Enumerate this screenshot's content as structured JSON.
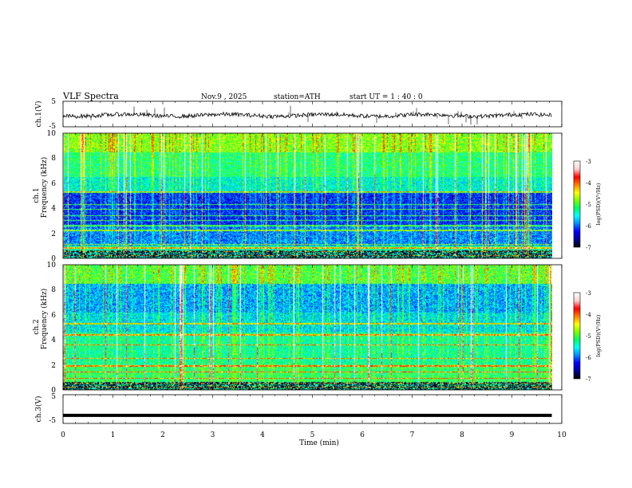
{
  "header": {
    "title": "VLF  Spectra",
    "date": "Nov.9   , 2025",
    "station": "station=ATH",
    "start_ut": "start  UT  =    1  : 40 : 0"
  },
  "chart_data": {
    "type": "heatmap",
    "xlabel": "Time  (min)",
    "xlim": [
      0,
      10
    ],
    "xticks": [
      "0",
      "1",
      "2",
      "3",
      "4",
      "5",
      "6",
      "7",
      "8",
      "9",
      "10"
    ],
    "data_end_min": 9.8,
    "panels": [
      {
        "id": "ch1-waveform",
        "type": "line",
        "ylabel": "ch.1(V)",
        "ylim": [
          -5,
          5
        ],
        "yticks": [
          "5",
          "-5"
        ],
        "baseline": -0.5
      },
      {
        "id": "ch1-spectrogram",
        "type": "heatmap",
        "ylabel_top": "ch.1",
        "ylabel": "Frequency  (kHz)",
        "ylim": [
          0,
          10
        ],
        "yticks": [
          "0",
          "2",
          "4",
          "6",
          "8",
          "10"
        ],
        "lines_khz": [
          0.2,
          0.5,
          0.8,
          1.1,
          2.2,
          2.6,
          3.0,
          3.4,
          3.9,
          4.3,
          5.3
        ]
      },
      {
        "id": "ch2-spectrogram",
        "type": "heatmap",
        "ylabel_top": "ch.2",
        "ylabel": "Frequency  (kHz)",
        "ylim": [
          0,
          10
        ],
        "yticks": [
          "0",
          "2",
          "4",
          "6",
          "8",
          "10"
        ],
        "lines_khz": [
          0.2,
          0.5,
          0.9,
          1.4,
          1.9,
          2.5,
          3.6,
          4.4,
          5.3
        ]
      },
      {
        "id": "ch3-waveform",
        "type": "line",
        "ylabel": "ch.3(V)",
        "ylim": [
          -5,
          5
        ],
        "yticks": [
          "5",
          "-5"
        ],
        "baseline": -2.2
      }
    ],
    "colorbar": {
      "label": "log(PSD)(V²/Hz)",
      "range": [
        -7,
        -3
      ],
      "ticks": [
        "-3",
        "-4",
        "-5",
        "-6",
        "-7"
      ],
      "colormap": [
        "#000000",
        "#0000a0",
        "#0000ff",
        "#0090ff",
        "#00ffff",
        "#00ff60",
        "#80ff00",
        "#ffff00",
        "#ff8000",
        "#ff0000",
        "#ffd0d0",
        "#ffffff"
      ]
    }
  }
}
